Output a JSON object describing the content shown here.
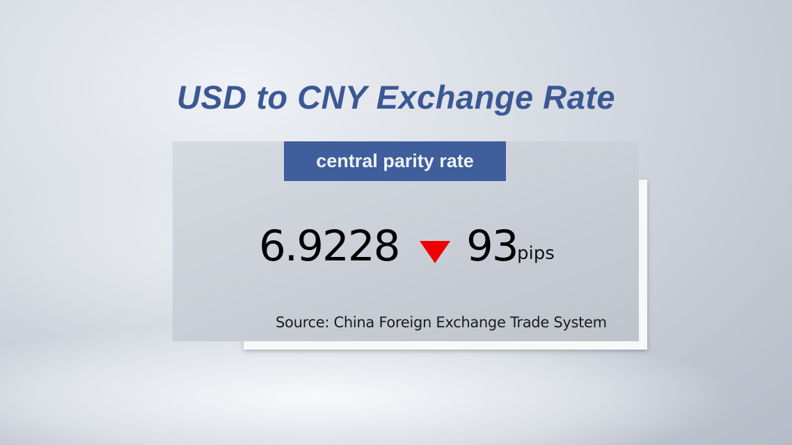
{
  "title": "USD to CNY Exchange Rate",
  "label": "central parity rate",
  "rate": "6.9228",
  "direction_icon": "down-triangle-icon",
  "direction_color": "#ee0000",
  "change": "93",
  "change_unit": "pips",
  "source": "Source: China Foreign Exchange Trade System",
  "colors": {
    "title": "#3b5894",
    "label_bg": "#3f5e9c"
  }
}
